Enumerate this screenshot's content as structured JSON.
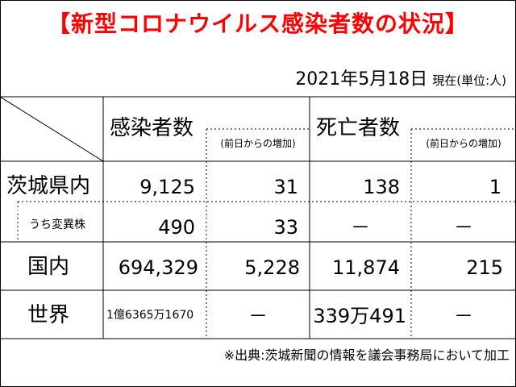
{
  "title": "【新型コロナウイルス感染者数の状況】",
  "date": "2021年5月18日",
  "unit": "現在(単位:人)",
  "headers": {
    "infected": "感染者数",
    "infected_increase": "(前日からの増加)",
    "deaths": "死亡者数",
    "deaths_increase": "(前日からの増加)"
  },
  "rows": [
    {
      "label": "茨城県内",
      "infected": "9,125",
      "infected_increase": "31",
      "deaths": "138",
      "deaths_increase": "1"
    },
    {
      "label": "うち変異株",
      "infected": "490",
      "infected_increase": "33",
      "deaths": "－",
      "deaths_increase": "－"
    },
    {
      "label": "国内",
      "infected": "694,329",
      "infected_increase": "5,228",
      "deaths": "11,874",
      "deaths_increase": "215"
    },
    {
      "label": "世界",
      "infected": "1億6365万1670",
      "infected_increase": "－",
      "deaths": "339万491",
      "deaths_increase": "－"
    }
  ],
  "footer": "※出典:茨城新聞の情報を議会事務局において加工"
}
